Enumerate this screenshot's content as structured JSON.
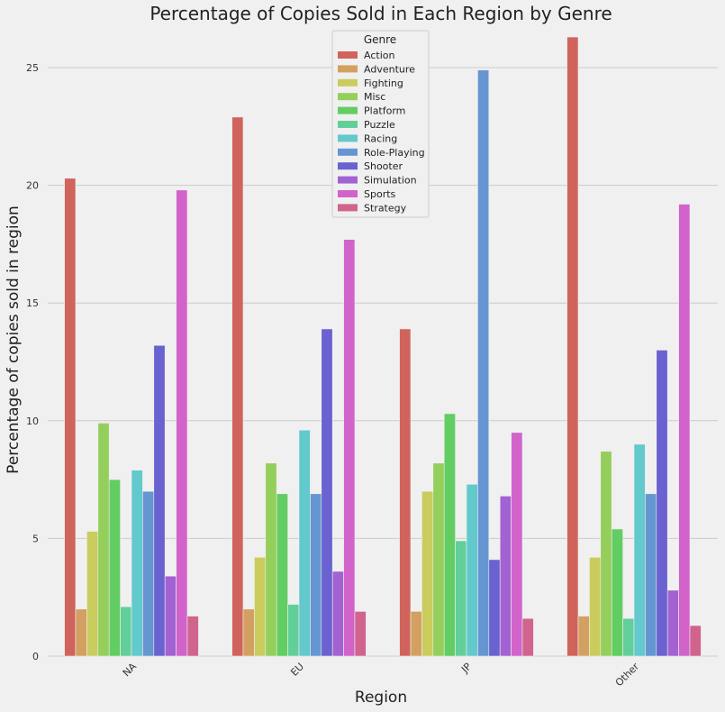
{
  "chart_data": {
    "type": "bar",
    "title": "Percentage of Copies Sold in Each Region by Genre",
    "xlabel": "Region",
    "ylabel": "Percentage of copies sold in region",
    "categories": [
      "NA",
      "EU",
      "JP",
      "Other"
    ],
    "ylim": [
      0,
      26.8
    ],
    "yticks": [
      0,
      5,
      10,
      15,
      20,
      25
    ],
    "grid": true,
    "legend_title": "Genre",
    "legend_position": "top-center",
    "series": [
      {
        "name": "Action",
        "color": "#d0645c",
        "values": [
          20.3,
          22.9,
          13.9,
          26.3
        ]
      },
      {
        "name": "Adventure",
        "color": "#d4a062",
        "values": [
          2.0,
          2.0,
          1.9,
          1.7
        ]
      },
      {
        "name": "Fighting",
        "color": "#cacc5e",
        "values": [
          5.3,
          4.2,
          7.0,
          4.2
        ]
      },
      {
        "name": "Misc",
        "color": "#94cf5c",
        "values": [
          9.9,
          8.2,
          8.2,
          8.7
        ]
      },
      {
        "name": "Platform",
        "color": "#62cd62",
        "values": [
          7.5,
          6.9,
          10.3,
          5.4
        ]
      },
      {
        "name": "Puzzle",
        "color": "#62cf9a",
        "values": [
          2.1,
          2.2,
          4.9,
          1.6
        ]
      },
      {
        "name": "Racing",
        "color": "#62c9cd",
        "values": [
          7.9,
          9.6,
          7.3,
          9.0
        ]
      },
      {
        "name": "Role-Playing",
        "color": "#6596d2",
        "values": [
          7.0,
          6.9,
          24.9,
          6.9
        ]
      },
      {
        "name": "Shooter",
        "color": "#6a62d0",
        "values": [
          13.2,
          13.9,
          4.1,
          13.0
        ]
      },
      {
        "name": "Simulation",
        "color": "#a262d2",
        "values": [
          3.4,
          3.6,
          6.8,
          2.8
        ]
      },
      {
        "name": "Sports",
        "color": "#d163cb",
        "values": [
          19.8,
          17.7,
          9.5,
          19.2
        ]
      },
      {
        "name": "Strategy",
        "color": "#d0648d",
        "values": [
          1.7,
          1.9,
          1.6,
          1.3
        ]
      }
    ]
  }
}
